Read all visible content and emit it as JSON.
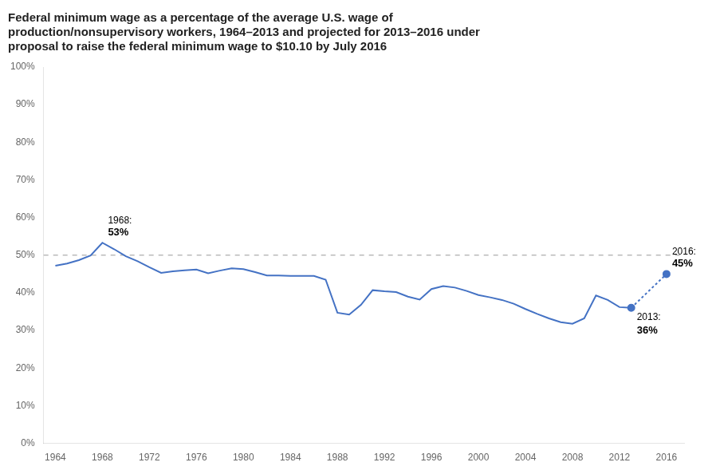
{
  "chart_data": {
    "type": "line",
    "title": [
      "Federal minimum wage as a percentage of the average U.S. wage of",
      "production/nonsupervisory workers, 1964–2013 and projected for 2013–2016 under",
      "proposal to raise the federal minimum wage to $10.10 by July 2016"
    ],
    "series": [
      {
        "x": [
          1964,
          1965,
          1966,
          1967,
          1968,
          1969,
          1970,
          1971,
          1972,
          1973,
          1974,
          1975,
          1976,
          1977,
          1978,
          1979,
          1980,
          1981,
          1982,
          1983,
          1984,
          1985,
          1986,
          1987,
          1988,
          1989,
          1990,
          1991,
          1992,
          1993,
          1994,
          1995,
          1996,
          1997,
          1998,
          1999,
          2000,
          2001,
          2002,
          2003,
          2004,
          2005,
          2006,
          2007,
          2008,
          2009,
          2010,
          2011,
          2012,
          2013
        ],
        "values": [
          0.472,
          0.478,
          0.487,
          0.499,
          0.533,
          0.516,
          0.497,
          0.484,
          0.468,
          0.453,
          0.457,
          0.46,
          0.462,
          0.452,
          0.459,
          0.465,
          0.463,
          0.455,
          0.446,
          0.446,
          0.445,
          0.445,
          0.445,
          0.435,
          0.347,
          0.342,
          0.368,
          0.407,
          0.404,
          0.402,
          0.39,
          0.382,
          0.41,
          0.418,
          0.414,
          0.405,
          0.394,
          0.388,
          0.381,
          0.371,
          0.357,
          0.344,
          0.332,
          0.322,
          0.318,
          0.332,
          0.393,
          0.381,
          0.362,
          0.36
        ],
        "color": "#4472C4",
        "line_style": "solid"
      },
      {
        "x": [
          2013,
          2016
        ],
        "values": [
          0.36,
          0.45
        ],
        "color": "#4472C4",
        "line_style": "dotted",
        "marker": "circle"
      }
    ],
    "reference_lines": [
      {
        "y": 0.5,
        "color": "#999999",
        "line_style": "dashed"
      }
    ],
    "annotations": [
      {
        "x": 1968,
        "y": 0.533,
        "text": [
          "1968:",
          "53%"
        ],
        "position": "above"
      },
      {
        "x": 2013,
        "y": 0.36,
        "text": [
          "2013:",
          "36%"
        ],
        "position": "below"
      },
      {
        "x": 2016,
        "y": 0.45,
        "text": [
          "2016:",
          "45%"
        ],
        "position": "above"
      }
    ],
    "xlim": [
      1963.0,
      2017.5
    ],
    "xticks": [
      1964,
      1968,
      1972,
      1976,
      1980,
      1984,
      1988,
      1992,
      1996,
      2000,
      2004,
      2008,
      2012,
      2016
    ],
    "ylim": [
      0.0,
      1.0
    ],
    "yticks": [
      {
        "value": 0.0,
        "label": "0%"
      },
      {
        "value": 0.1,
        "label": "10%"
      },
      {
        "value": 0.2,
        "label": "20%"
      },
      {
        "value": 0.3,
        "label": "30%"
      },
      {
        "value": 0.4,
        "label": "40%"
      },
      {
        "value": 0.5,
        "label": "50%"
      },
      {
        "value": 0.6,
        "label": "60%"
      },
      {
        "value": 0.7,
        "label": "70%"
      },
      {
        "value": 0.8,
        "label": "80%"
      },
      {
        "value": 0.9,
        "label": "90%"
      },
      {
        "value": 1.0,
        "label": "100%"
      }
    ],
    "grid": false
  }
}
